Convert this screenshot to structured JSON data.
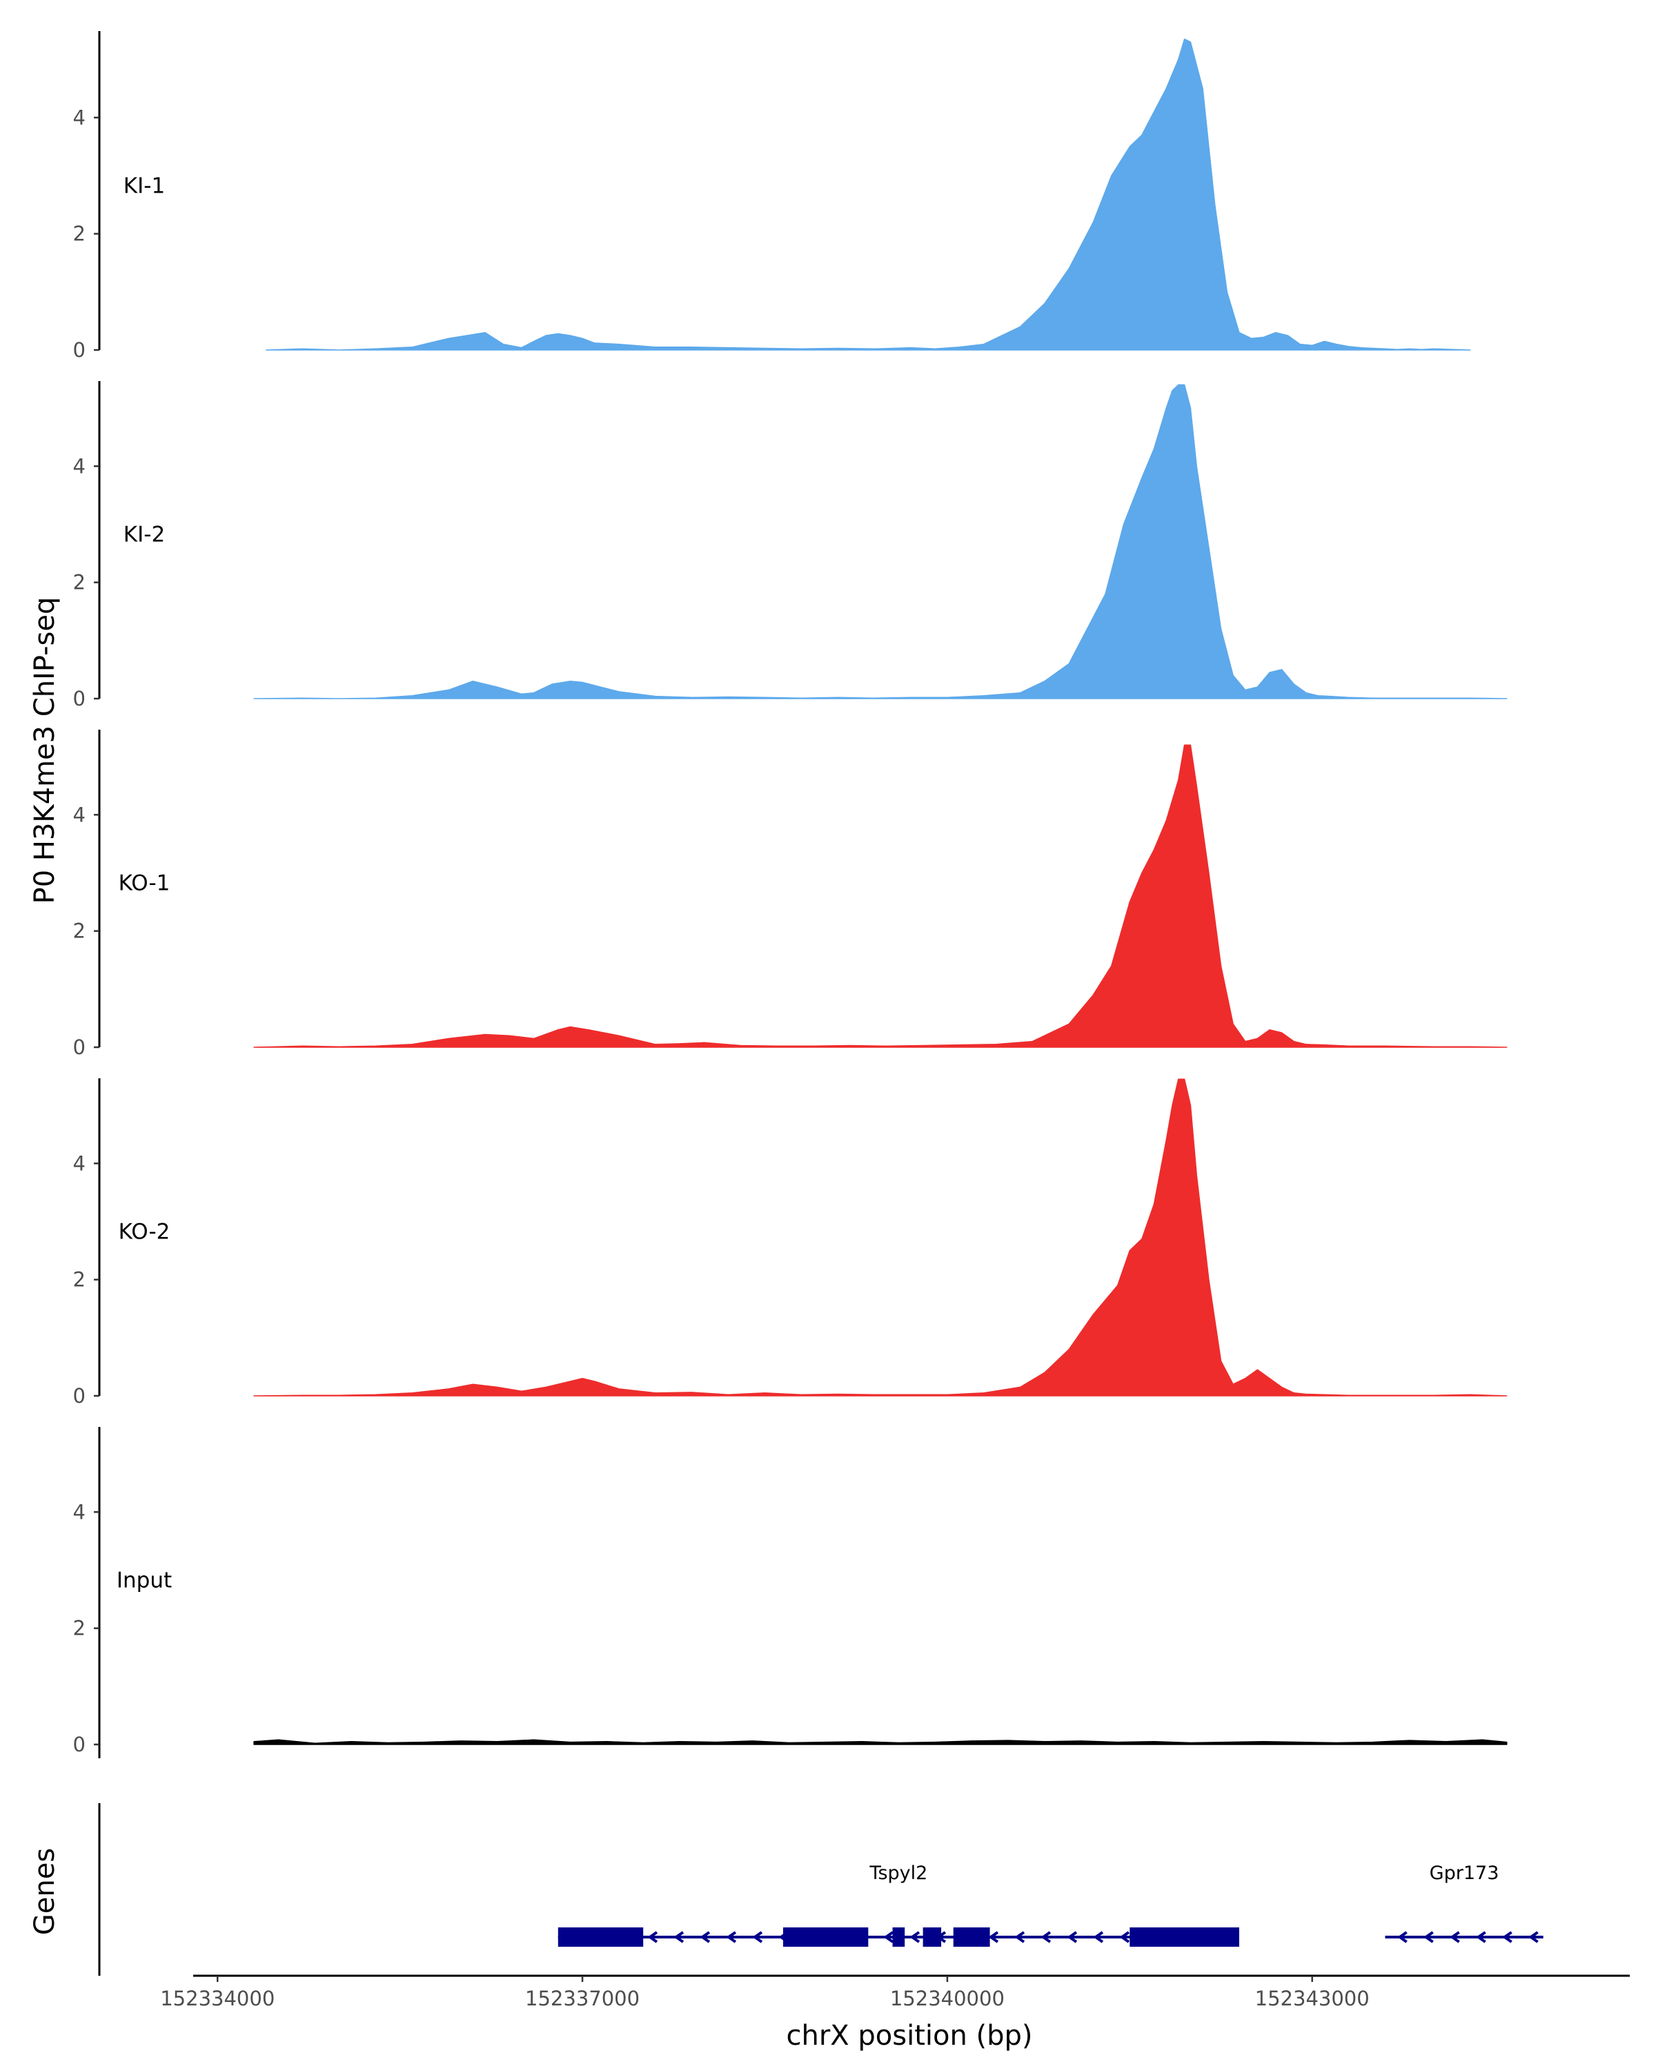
{
  "chart_data": {
    "type": "area",
    "title": "",
    "xlabel": "chrX position (bp)",
    "ylabel": "P0 H3K4me3 ChIP-seq",
    "genes_label": "Genes",
    "xlim": [
      152333800,
      152345600
    ],
    "ylim": [
      0,
      5.5
    ],
    "x_ticks": [
      152334000,
      152337000,
      152340000,
      152343000
    ],
    "x_tick_labels": [
      "152334000",
      "152337000",
      "152340000",
      "152343000"
    ],
    "y_ticks": [
      0,
      2,
      4
    ],
    "y_tick_labels": [
      "0",
      "2",
      "4"
    ],
    "grid": false,
    "legend": "none",
    "tracks": [
      {
        "name": "KI-1",
        "color": "#5DA9EB",
        "x": [
          152334400,
          152334700,
          152335000,
          152335300,
          152335600,
          152335900,
          152336200,
          152336350,
          152336500,
          152336600,
          152336700,
          152336800,
          152336900,
          152337000,
          152337100,
          152337300,
          152337600,
          152337900,
          152338200,
          152338500,
          152338800,
          152339100,
          152339400,
          152339700,
          152339900,
          152340100,
          152340300,
          152340600,
          152340800,
          152341000,
          152341200,
          152341350,
          152341500,
          152341600,
          152341700,
          152341800,
          152341900,
          152341950,
          152342000,
          152342100,
          152342150,
          152342200,
          152342300,
          152342400,
          152342500,
          152342600,
          152342700,
          152342800,
          152342900,
          152343000,
          152343100,
          152343200,
          152343300,
          152343400,
          152343500,
          152343600,
          152343700,
          152343800,
          152343900,
          152344000,
          152344300
        ],
        "y": [
          0,
          0.02,
          0,
          0.02,
          0.05,
          0.2,
          0.3,
          0.1,
          0.04,
          0.15,
          0.25,
          0.28,
          0.25,
          0.2,
          0.12,
          0.1,
          0.05,
          0.05,
          0.04,
          0.03,
          0.02,
          0.03,
          0.02,
          0.04,
          0.02,
          0.05,
          0.1,
          0.4,
          0.8,
          1.4,
          2.2,
          3.0,
          3.5,
          3.7,
          4.1,
          4.5,
          5.0,
          5.35,
          5.3,
          4.5,
          3.5,
          2.5,
          1.0,
          0.3,
          0.2,
          0.22,
          0.3,
          0.25,
          0.1,
          0.08,
          0.15,
          0.1,
          0.06,
          0.04,
          0.03,
          0.02,
          0.01,
          0.02,
          0.01,
          0.02,
          0
        ]
      },
      {
        "name": "KI-2",
        "color": "#5DA9EB",
        "x": [
          152334300,
          152334700,
          152335000,
          152335300,
          152335600,
          152335900,
          152336100,
          152336300,
          152336500,
          152336600,
          152336750,
          152336900,
          152337000,
          152337150,
          152337300,
          152337600,
          152337900,
          152338200,
          152338500,
          152338800,
          152339100,
          152339400,
          152339700,
          152340000,
          152340300,
          152340600,
          152340800,
          152341000,
          152341200,
          152341300,
          152341450,
          152341600,
          152341700,
          152341800,
          152341850,
          152341900,
          152341950,
          152342000,
          152342050,
          152342150,
          152342250,
          152342350,
          152342450,
          152342550,
          152342650,
          152342750,
          152342850,
          152342950,
          152343050,
          152343150,
          152343300,
          152343500,
          152343700,
          152344000,
          152344300,
          152344600
        ],
        "y": [
          0,
          0.01,
          0,
          0.01,
          0.05,
          0.15,
          0.3,
          0.2,
          0.08,
          0.1,
          0.25,
          0.3,
          0.28,
          0.2,
          0.12,
          0.04,
          0.02,
          0.03,
          0.02,
          0.01,
          0.02,
          0.01,
          0.02,
          0.02,
          0.05,
          0.1,
          0.3,
          0.6,
          1.4,
          1.8,
          3.0,
          3.8,
          4.3,
          5.0,
          5.3,
          5.4,
          5.4,
          5.0,
          4.0,
          2.6,
          1.2,
          0.4,
          0.15,
          0.2,
          0.45,
          0.5,
          0.25,
          0.1,
          0.05,
          0.04,
          0.02,
          0.01,
          0.01,
          0.01,
          0.01,
          0
        ]
      },
      {
        "name": "KO-1",
        "color": "#EE2C2C",
        "x": [
          152334300,
          152334700,
          152335000,
          152335300,
          152335600,
          152335900,
          152336200,
          152336400,
          152336600,
          152336800,
          152336900,
          152337050,
          152337300,
          152337600,
          152337800,
          152338000,
          152338300,
          152338600,
          152338900,
          152339200,
          152339500,
          152339800,
          152340100,
          152340400,
          152340700,
          152341000,
          152341200,
          152341350,
          152341500,
          152341600,
          152341700,
          152341800,
          152341900,
          152341950,
          152342000,
          152342050,
          152342150,
          152342250,
          152342350,
          152342450,
          152342550,
          152342650,
          152342750,
          152342850,
          152342950,
          152343100,
          152343300,
          152343600,
          152344000,
          152344300,
          152344600
        ],
        "y": [
          0,
          0.02,
          0.01,
          0.02,
          0.05,
          0.15,
          0.22,
          0.2,
          0.15,
          0.3,
          0.35,
          0.3,
          0.2,
          0.05,
          0.06,
          0.08,
          0.03,
          0.02,
          0.02,
          0.03,
          0.02,
          0.03,
          0.04,
          0.05,
          0.1,
          0.4,
          0.9,
          1.4,
          2.5,
          3.0,
          3.4,
          3.9,
          4.6,
          5.2,
          5.2,
          4.5,
          3.0,
          1.4,
          0.4,
          0.1,
          0.15,
          0.3,
          0.25,
          0.1,
          0.05,
          0.04,
          0.02,
          0.02,
          0.01,
          0.01,
          0
        ]
      },
      {
        "name": "KO-2",
        "color": "#EE2C2C",
        "x": [
          152334300,
          152334700,
          152335000,
          152335300,
          152335600,
          152335900,
          152336100,
          152336300,
          152336500,
          152336700,
          152336900,
          152337000,
          152337100,
          152337300,
          152337600,
          152337900,
          152338200,
          152338500,
          152338800,
          152339100,
          152339400,
          152339700,
          152340000,
          152340300,
          152340600,
          152340800,
          152341000,
          152341200,
          152341400,
          152341500,
          152341600,
          152341700,
          152341800,
          152341850,
          152341900,
          152341950,
          152342000,
          152342050,
          152342150,
          152342250,
          152342350,
          152342450,
          152342550,
          152342650,
          152342750,
          152342850,
          152342950,
          152343100,
          152343300,
          152343600,
          152344000,
          152344300,
          152344600
        ],
        "y": [
          0,
          0.01,
          0.01,
          0.02,
          0.05,
          0.12,
          0.2,
          0.15,
          0.08,
          0.15,
          0.25,
          0.3,
          0.25,
          0.12,
          0.05,
          0.06,
          0.02,
          0.05,
          0.02,
          0.03,
          0.02,
          0.02,
          0.02,
          0.05,
          0.15,
          0.4,
          0.8,
          1.4,
          1.9,
          2.5,
          2.7,
          3.3,
          4.4,
          5.0,
          5.45,
          5.45,
          5.0,
          3.8,
          2.0,
          0.6,
          0.2,
          0.3,
          0.45,
          0.3,
          0.15,
          0.05,
          0.03,
          0.02,
          0.01,
          0.01,
          0.01,
          0.02,
          0
        ]
      },
      {
        "name": "Input",
        "color": "#000000",
        "x": [
          152334300,
          152334500,
          152334800,
          152335100,
          152335400,
          152335700,
          152336000,
          152336300,
          152336600,
          152336900,
          152337200,
          152337500,
          152337800,
          152338100,
          152338400,
          152338700,
          152339000,
          152339300,
          152339600,
          152339900,
          152340200,
          152340500,
          152340800,
          152341100,
          152341400,
          152341700,
          152342000,
          152342300,
          152342600,
          152342900,
          152343200,
          152343500,
          152343800,
          152344100,
          152344400,
          152344600
        ],
        "y": [
          0.05,
          0.08,
          0.02,
          0.05,
          0.03,
          0.04,
          0.06,
          0.05,
          0.08,
          0.04,
          0.05,
          0.03,
          0.05,
          0.04,
          0.06,
          0.03,
          0.04,
          0.05,
          0.03,
          0.04,
          0.06,
          0.07,
          0.05,
          0.06,
          0.04,
          0.05,
          0.03,
          0.04,
          0.05,
          0.04,
          0.03,
          0.04,
          0.07,
          0.05,
          0.08,
          0.04
        ]
      }
    ],
    "genes": [
      {
        "name": "Tspyl2",
        "start": 152336800,
        "end": 152342400,
        "strand": "-",
        "exons": [
          [
            152336800,
            152337500
          ],
          [
            152338650,
            152339350
          ],
          [
            152339550,
            152339650
          ],
          [
            152339800,
            152339950
          ],
          [
            152340050,
            152340350
          ],
          [
            152341500,
            152342400
          ]
        ]
      },
      {
        "name": "Gpr173",
        "start": 152343600,
        "end": 152344900,
        "strand": "-",
        "exons": []
      }
    ]
  }
}
